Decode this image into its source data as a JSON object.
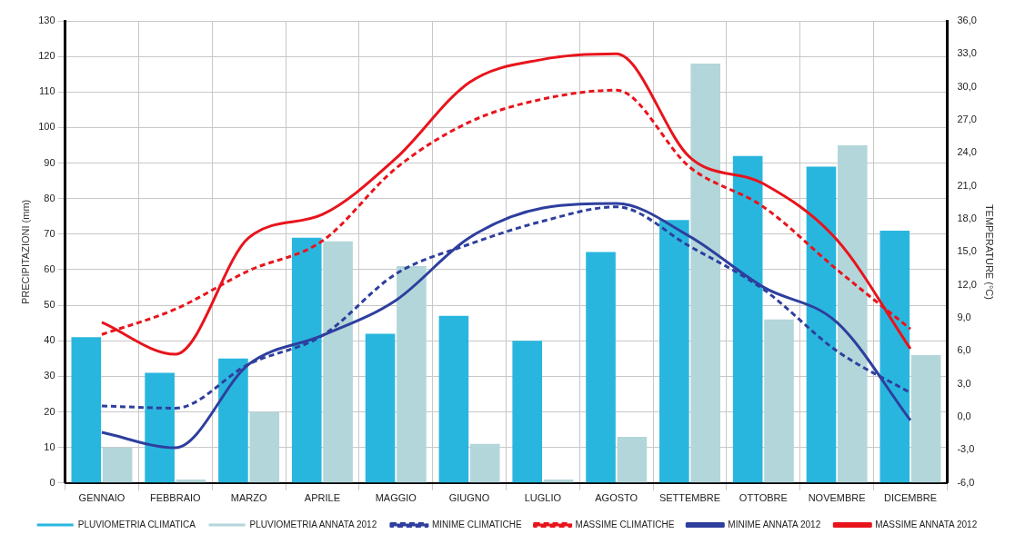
{
  "chart_data": {
    "type": "bar",
    "ylabel": "PRECIPITAZIONI (mm)",
    "y2label": "TEMPERATURE (°C)",
    "categories": [
      "GENNAIO",
      "FEBBRAIO",
      "MARZO",
      "APRILE",
      "MAGGIO",
      "GIUGNO",
      "LUGLIO",
      "AGOSTO",
      "SETTEMBRE",
      "OTTOBRE",
      "NOVEMBRE",
      "DICEMBRE"
    ],
    "series": [
      {
        "name": "PLUVIOMETRIA CLIMATICA",
        "color": "#29b6de",
        "values": [
          41,
          31,
          35,
          69,
          42,
          47,
          40,
          65,
          74,
          92,
          89,
          71
        ]
      },
      {
        "name": "PLUVIOMETRIA ANNATA 2012",
        "color": "#b3d6da",
        "values": [
          10,
          1,
          20,
          68,
          61,
          11,
          1,
          13,
          118,
          46,
          95,
          36
        ]
      },
      {
        "name": "MINIME CLIMATICHE",
        "type": "line",
        "axis": "y2",
        "line_style": "dashed",
        "color": "#2e3f9e",
        "values": [
          1.0,
          0.8,
          4.8,
          7.4,
          13.0,
          15.7,
          17.8,
          19.1,
          15.5,
          11.6,
          6.0,
          2.2
        ]
      },
      {
        "name": "MASSIME CLIMATICHE",
        "type": "line",
        "axis": "y2",
        "line_style": "dashed",
        "color": "#e8141c",
        "values": [
          7.5,
          9.8,
          13.3,
          16.0,
          22.6,
          26.8,
          28.9,
          29.7,
          22.7,
          19.1,
          13.4,
          8.0
        ]
      },
      {
        "name": "MINIME ANNATA 2012",
        "type": "line",
        "axis": "y2",
        "line_style": "solid",
        "color": "#2e3f9e",
        "values": [
          -1.4,
          -2.8,
          4.8,
          7.4,
          10.6,
          16.3,
          19.0,
          19.4,
          16.4,
          11.8,
          8.6,
          -0.3
        ]
      },
      {
        "name": "MASSIME ANNATA 2012",
        "type": "line",
        "axis": "y2",
        "line_style": "solid",
        "color": "#e8141c",
        "values": [
          8.6,
          5.7,
          16.3,
          18.4,
          23.5,
          30.4,
          32.5,
          33.0,
          23.6,
          21.2,
          16.1,
          6.2
        ]
      }
    ],
    "ylim": [
      0,
      130
    ],
    "yticks": [
      0,
      10,
      20,
      30,
      40,
      50,
      60,
      70,
      80,
      90,
      100,
      110,
      120,
      130
    ],
    "y2lim": [
      -6,
      36
    ],
    "y2ticks": [
      {
        "value": -6,
        "label": "-6,0"
      },
      {
        "value": -3,
        "label": "-3,0"
      },
      {
        "value": 0,
        "label": "0,0"
      },
      {
        "value": 3,
        "label": "3,0"
      },
      {
        "value": 6,
        "label": "6,0"
      },
      {
        "value": 9,
        "label": "9,0"
      },
      {
        "value": 12,
        "label": "12,0"
      },
      {
        "value": 15,
        "label": "15,0"
      },
      {
        "value": 18,
        "label": "18,0"
      },
      {
        "value": 21,
        "label": "21,0"
      },
      {
        "value": 24,
        "label": "24,0"
      },
      {
        "value": 27,
        "label": "27,0"
      },
      {
        "value": 30,
        "label": "30,0"
      },
      {
        "value": 33,
        "label": "33,0"
      },
      {
        "value": 36,
        "label": "36,0"
      }
    ],
    "grid": true,
    "legend": "bottom",
    "marker": "none"
  }
}
